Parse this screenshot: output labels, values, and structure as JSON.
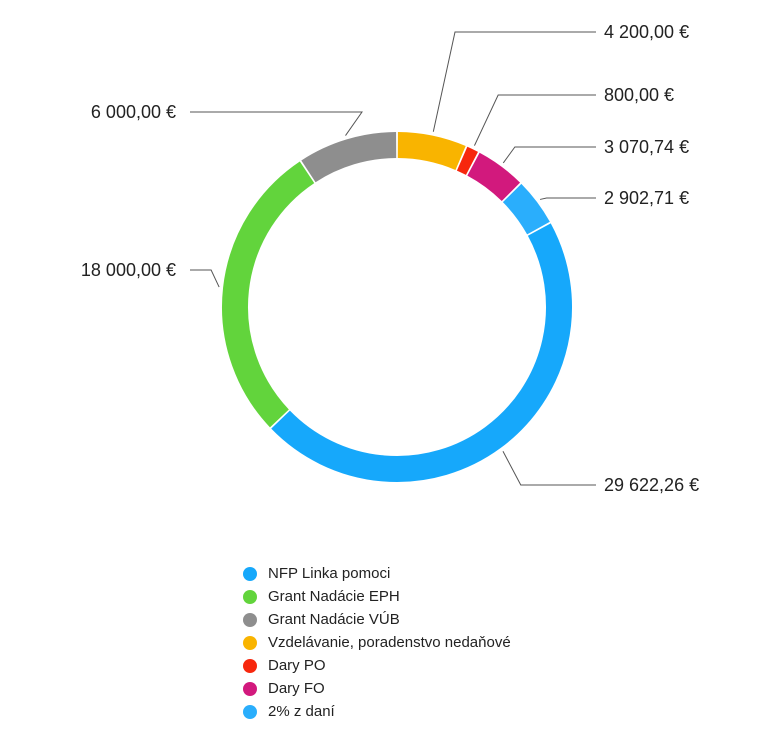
{
  "chart_data": {
    "type": "pie",
    "subtype": "donut",
    "currency": "€",
    "slices": [
      {
        "name": "NFP Linka pomoci",
        "value": 29622.26,
        "label": "29 622,26 €",
        "color": "#16a8fb"
      },
      {
        "name": "Grant Nadácie EPH",
        "value": 18000.0,
        "label": "18 000,00 €",
        "color": "#62d43c"
      },
      {
        "name": "Grant Nadácie VÚB",
        "value": 6000.0,
        "label": "6 000,00 €",
        "color": "#8e8e8e"
      },
      {
        "name": "Vzdelávanie, poradenstvo nedaňové",
        "value": 4200.0,
        "label": "4 200,00 €",
        "color": "#f9b400"
      },
      {
        "name": "Dary PO",
        "value": 800.0,
        "label": "800,00 €",
        "color": "#f7270d"
      },
      {
        "name": "Dary FO",
        "value": 3070.74,
        "label": "3 070,74 €",
        "color": "#d2197d"
      },
      {
        "name": "2% z daní",
        "value": 2902.71,
        "label": "2 902,71 €",
        "color": "#2aaefc"
      }
    ],
    "legend_position": "bottom"
  }
}
